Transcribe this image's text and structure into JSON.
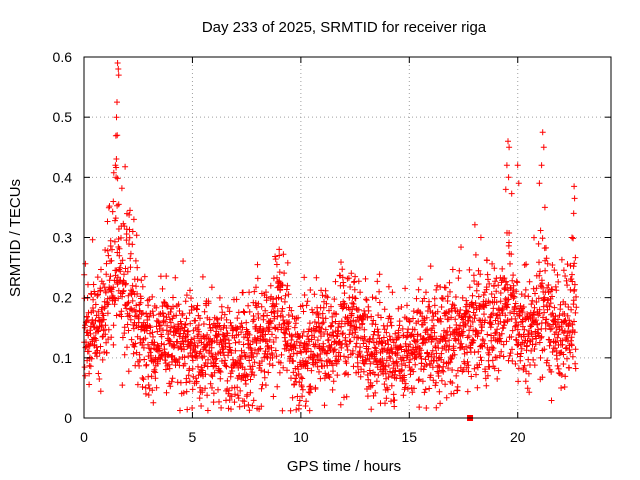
{
  "chart_data": {
    "type": "scatter",
    "title": "Day 233 of 2025, SRMTID for receiver riga",
    "xlabel": "GPS time / hours",
    "ylabel": "SRMTID / TECUs",
    "xlim": [
      0,
      24.3
    ],
    "ylim": [
      0,
      0.6
    ],
    "x_ticks": [
      0,
      5,
      10,
      15,
      20
    ],
    "y_ticks": [
      0,
      0.1,
      0.2,
      0.3,
      0.4,
      0.5,
      0.6
    ],
    "x_tick_labels": [
      "0",
      "5",
      "10",
      "15",
      "20"
    ],
    "y_tick_labels": [
      "0",
      "0.1",
      "0.2",
      "0.3",
      "0.4",
      "0.5",
      "0.6"
    ],
    "grid": true,
    "marker": "+",
    "marker_color": "#ff0000",
    "series": [
      {
        "name": "SRMTID",
        "profile": {
          "x": [
            0,
            0.5,
            1.0,
            1.5,
            2.0,
            2.5,
            3.0,
            3.5,
            4.0,
            5.0,
            6.0,
            7.0,
            8.0,
            9.0,
            10.0,
            11.0,
            12.0,
            13.0,
            14.0,
            15.0,
            16.0,
            17.0,
            18.0,
            19.0,
            19.5,
            20.0,
            20.5,
            21.0,
            21.5,
            22.0,
            22.7
          ],
          "y": [
            0.14,
            0.15,
            0.16,
            0.22,
            0.19,
            0.14,
            0.12,
            0.12,
            0.13,
            0.11,
            0.11,
            0.1,
            0.12,
            0.15,
            0.11,
            0.12,
            0.14,
            0.13,
            0.1,
            0.11,
            0.13,
            0.12,
            0.16,
            0.15,
            0.16,
            0.15,
            0.14,
            0.17,
            0.15,
            0.14,
            0.15
          ]
        },
        "peaks": [
          {
            "x": 1.55,
            "y": 0.59
          },
          {
            "x": 1.58,
            "y": 0.58
          },
          {
            "x": 1.6,
            "y": 0.57
          },
          {
            "x": 1.52,
            "y": 0.525
          },
          {
            "x": 1.5,
            "y": 0.5
          },
          {
            "x": 1.53,
            "y": 0.47
          },
          {
            "x": 1.45,
            "y": 0.42
          },
          {
            "x": 1.48,
            "y": 0.4
          },
          {
            "x": 1.6,
            "y": 0.355
          },
          {
            "x": 2.3,
            "y": 0.33
          },
          {
            "x": 2.25,
            "y": 0.31
          },
          {
            "x": 9.0,
            "y": 0.27
          },
          {
            "x": 8.0,
            "y": 0.255
          },
          {
            "x": 12.5,
            "y": 0.235
          },
          {
            "x": 18.3,
            "y": 0.3
          },
          {
            "x": 19.55,
            "y": 0.46
          },
          {
            "x": 19.6,
            "y": 0.45
          },
          {
            "x": 19.5,
            "y": 0.42
          },
          {
            "x": 19.58,
            "y": 0.4
          },
          {
            "x": 19.45,
            "y": 0.38
          },
          {
            "x": 20.0,
            "y": 0.42
          },
          {
            "x": 20.05,
            "y": 0.39
          },
          {
            "x": 21.15,
            "y": 0.475
          },
          {
            "x": 21.2,
            "y": 0.45
          },
          {
            "x": 21.1,
            "y": 0.42
          },
          {
            "x": 21.0,
            "y": 0.39
          },
          {
            "x": 21.25,
            "y": 0.35
          },
          {
            "x": 22.6,
            "y": 0.385
          },
          {
            "x": 22.62,
            "y": 0.365
          },
          {
            "x": 22.58,
            "y": 0.34
          },
          {
            "x": 22.5,
            "y": 0.3
          },
          {
            "x": 7.4,
            "y": 0.02
          },
          {
            "x": 5.4,
            "y": 0.02
          }
        ],
        "spikes": [
          {
            "x": 1.5,
            "w": 0.45,
            "amp": 0.14
          },
          {
            "x": 2.2,
            "w": 0.3,
            "amp": 0.1
          },
          {
            "x": 9.0,
            "w": 0.3,
            "amp": 0.06
          },
          {
            "x": 19.6,
            "w": 0.25,
            "amp": 0.1
          },
          {
            "x": 21.1,
            "w": 0.35,
            "amp": 0.08
          },
          {
            "x": 22.6,
            "w": 0.2,
            "amp": 0.08
          }
        ],
        "scatter": 0.045,
        "count": 2600,
        "x_end": 22.7
      }
    ],
    "extra_marks": [
      {
        "name": "filled-square-at-x-axis",
        "x": 17.8,
        "y": 0.0
      }
    ]
  }
}
